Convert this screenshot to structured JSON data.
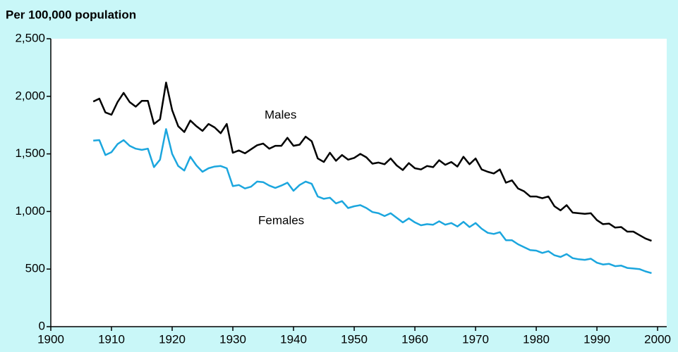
{
  "chart_data": {
    "type": "line",
    "ylabel": "Per 100,000 population",
    "annotations": [
      "Males",
      "Females"
    ],
    "x": [
      1907,
      1908,
      1909,
      1910,
      1911,
      1912,
      1913,
      1914,
      1915,
      1916,
      1917,
      1918,
      1919,
      1920,
      1921,
      1922,
      1923,
      1924,
      1925,
      1926,
      1927,
      1928,
      1929,
      1930,
      1931,
      1932,
      1933,
      1934,
      1935,
      1936,
      1937,
      1938,
      1939,
      1940,
      1941,
      1942,
      1943,
      1944,
      1945,
      1946,
      1947,
      1948,
      1949,
      1950,
      1951,
      1952,
      1953,
      1954,
      1955,
      1956,
      1957,
      1958,
      1959,
      1960,
      1961,
      1962,
      1963,
      1964,
      1965,
      1966,
      1967,
      1968,
      1969,
      1970,
      1971,
      1972,
      1973,
      1974,
      1975,
      1976,
      1977,
      1978,
      1979,
      1980,
      1981,
      1982,
      1983,
      1984,
      1985,
      1986,
      1987,
      1988,
      1989,
      1990,
      1991,
      1992,
      1993,
      1994,
      1995,
      1996,
      1997,
      1998,
      1999
    ],
    "series": [
      {
        "color": "#000000",
        "values": [
          1955,
          1980,
          1860,
          1840,
          1950,
          2030,
          1950,
          1910,
          1960,
          1960,
          1760,
          1800,
          2120,
          1880,
          1740,
          1690,
          1790,
          1740,
          1700,
          1760,
          1730,
          1680,
          1760,
          1510,
          1530,
          1505,
          1540,
          1575,
          1590,
          1545,
          1570,
          1570,
          1640,
          1570,
          1580,
          1650,
          1610,
          1460,
          1430,
          1510,
          1440,
          1490,
          1450,
          1465,
          1500,
          1470,
          1415,
          1425,
          1410,
          1460,
          1400,
          1360,
          1420,
          1375,
          1365,
          1395,
          1385,
          1445,
          1405,
          1430,
          1390,
          1475,
          1410,
          1460,
          1365,
          1345,
          1330,
          1365,
          1250,
          1270,
          1200,
          1175,
          1130,
          1130,
          1115,
          1130,
          1045,
          1010,
          1055,
          990,
          985,
          980,
          985,
          925,
          890,
          895,
          860,
          865,
          825,
          825,
          795,
          765,
          745
        ]
      },
      {
        "color": "#1ba6de",
        "values": [
          1615,
          1620,
          1490,
          1515,
          1585,
          1620,
          1570,
          1545,
          1535,
          1545,
          1385,
          1450,
          1715,
          1500,
          1395,
          1355,
          1475,
          1400,
          1345,
          1375,
          1390,
          1395,
          1375,
          1220,
          1230,
          1200,
          1215,
          1260,
          1255,
          1225,
          1205,
          1225,
          1250,
          1180,
          1230,
          1260,
          1240,
          1130,
          1110,
          1120,
          1070,
          1090,
          1030,
          1045,
          1055,
          1030,
          995,
          985,
          960,
          985,
          945,
          905,
          940,
          905,
          880,
          890,
          885,
          915,
          885,
          900,
          870,
          910,
          865,
          900,
          850,
          815,
          805,
          820,
          750,
          750,
          715,
          690,
          665,
          660,
          640,
          655,
          620,
          605,
          630,
          595,
          585,
          580,
          590,
          555,
          540,
          545,
          525,
          530,
          510,
          505,
          500,
          480,
          465
        ]
      }
    ],
    "xlim": [
      1900,
      2001.5
    ],
    "xticks": [
      1900,
      1910,
      1920,
      1930,
      1940,
      1950,
      1960,
      1970,
      1980,
      1990,
      2000
    ],
    "ylim": [
      0,
      2500
    ],
    "yticks": [
      0,
      500,
      {
        "value": 1000,
        "label": "1,000"
      },
      {
        "value": 1500,
        "label": "1,500"
      },
      {
        "value": 2000,
        "label": "2,000"
      },
      {
        "value": 2500,
        "label": "2,500"
      }
    ]
  }
}
